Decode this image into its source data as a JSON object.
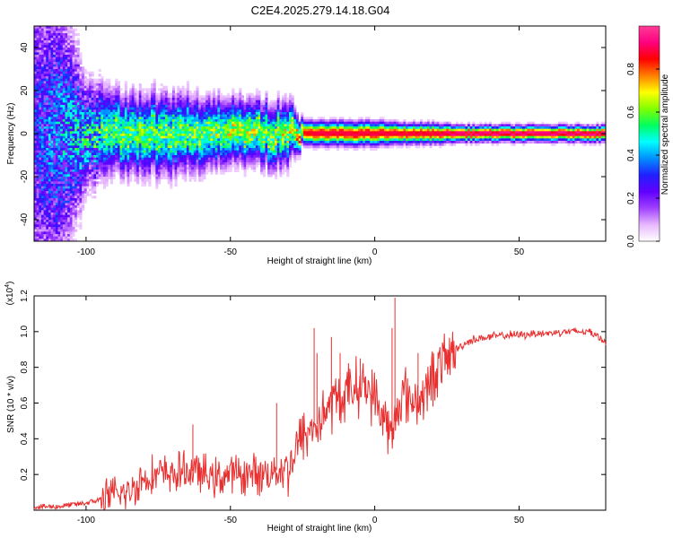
{
  "title": "C2E4.2025.279.14.18.G04",
  "chart_data": [
    {
      "type": "heatmap",
      "name": "spectrogram",
      "xlabel": "Height of straight line (km)",
      "ylabel": "Frequency (Hz)",
      "xlim": [
        -118,
        80
      ],
      "ylim": [
        -50,
        50
      ],
      "xticks": [
        -100,
        -50,
        0,
        50
      ],
      "yticks": [
        -40,
        -20,
        0,
        20,
        40
      ],
      "ridge_frequency_hz": 0,
      "colorbar": {
        "label": "Normalized spectral amplitude",
        "range": [
          0,
          1
        ],
        "ticks": [
          0.0,
          0.2,
          0.4,
          0.6,
          0.8
        ],
        "colors": [
          "#ffffff",
          "#e8b8ff",
          "#a040ff",
          "#6000ff",
          "#2020ff",
          "#0090ff",
          "#00ffff",
          "#00ff60",
          "#80ff00",
          "#ffff00",
          "#ff8000",
          "#ff0000",
          "#ff0080",
          "#ff3c96"
        ]
      },
      "intensity_profile": {
        "x_km": [
          -118,
          -110,
          -100,
          -90,
          -80,
          -70,
          -60,
          -50,
          -40,
          -30,
          -25,
          -20,
          -10,
          0,
          10,
          20,
          30,
          40,
          50,
          60,
          70,
          80
        ],
        "peak_amplitude": [
          0.3,
          0.4,
          0.5,
          0.6,
          0.6,
          0.6,
          0.6,
          0.65,
          0.65,
          0.65,
          0.85,
          0.9,
          0.9,
          0.9,
          0.9,
          0.9,
          0.95,
          0.95,
          0.95,
          0.95,
          0.95,
          0.95
        ],
        "spread_hz": [
          45,
          40,
          14,
          10,
          10,
          10,
          9,
          8,
          8,
          8,
          3,
          3,
          3,
          3,
          2.5,
          2.5,
          2,
          2,
          2,
          2,
          2,
          2
        ]
      }
    },
    {
      "type": "line",
      "name": "snr",
      "xlabel": "Height of straight line (km)",
      "ylabel": "SNR (10 * v/v)",
      "multiplier_label": "(x10",
      "multiplier_exponent": "4",
      "multiplier_close": ")",
      "color": "#e83030",
      "xlim": [
        -118,
        80
      ],
      "ylim": [
        0,
        1.2
      ],
      "xticks": [
        -100,
        -50,
        0,
        50
      ],
      "yticks": [
        0.2,
        0.4,
        0.6,
        0.8,
        1.0,
        1.2
      ],
      "ytick_labels": [
        "0.2",
        "0.4",
        "0.6",
        "0.8",
        "1.0",
        "1.2"
      ],
      "series": [
        {
          "name": "SNR",
          "x": [
            -118,
            -110,
            -100,
            -95,
            -90,
            -85,
            -80,
            -75,
            -70,
            -65,
            -62,
            -60,
            -55,
            -50,
            -45,
            -40,
            -35,
            -30,
            -28,
            -25,
            -22,
            -20,
            -17,
            -15,
            -12,
            -10,
            -8,
            -5,
            -2,
            0,
            2,
            4,
            6,
            7,
            8,
            10,
            12,
            15,
            18,
            20,
            22,
            25,
            28,
            30,
            32,
            35,
            40,
            45,
            50,
            55,
            60,
            65,
            70,
            72,
            74,
            75,
            76,
            77,
            78,
            80
          ],
          "y": [
            0.02,
            0.02,
            0.04,
            0.06,
            0.08,
            0.1,
            0.18,
            0.2,
            0.2,
            0.22,
            0.22,
            0.2,
            0.18,
            0.2,
            0.2,
            0.2,
            0.22,
            0.24,
            0.3,
            0.42,
            0.45,
            0.48,
            0.55,
            0.6,
            0.62,
            0.65,
            0.68,
            0.7,
            0.68,
            0.62,
            0.55,
            0.5,
            0.38,
            0.5,
            0.6,
            0.65,
            0.62,
            0.62,
            0.66,
            0.75,
            0.8,
            0.85,
            0.9,
            0.92,
            0.94,
            0.96,
            0.97,
            0.98,
            0.98,
            0.99,
            0.99,
            1.0,
            1.0,
            1.0,
            1.0,
            1.0,
            0.98,
            1.0,
            0.95,
            0.95
          ]
        }
      ],
      "spikes": {
        "x": [
          -63,
          -34,
          -21,
          -20,
          -15,
          -12,
          -5,
          6,
          7,
          15
        ],
        "y": [
          0.48,
          0.6,
          1.02,
          0.88,
          0.97,
          0.88,
          0.85,
          1.02,
          1.19,
          0.88
        ]
      }
    }
  ]
}
